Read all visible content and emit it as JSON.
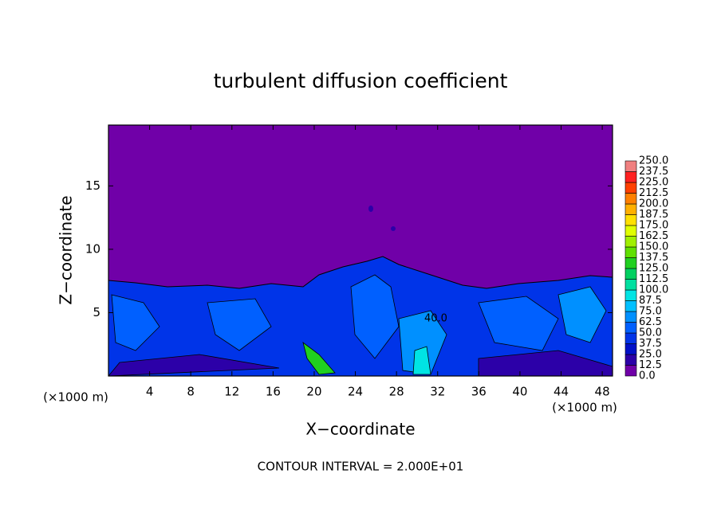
{
  "chart_data": {
    "type": "contour",
    "title": "turbulent diffusion coefficient",
    "xlabel": "X−coordinate",
    "ylabel": "Z−coordinate",
    "xunit_left": "(×1000 m)",
    "xunit_right": "(×1000 m)",
    "footnote": "CONTOUR INTERVAL = 2.000E+01",
    "contour_label": "40.0",
    "xlim": [
      0,
      49
    ],
    "ylim": [
      0,
      19.8
    ],
    "xticks": [
      4,
      8,
      12,
      16,
      20,
      24,
      28,
      32,
      36,
      40,
      44,
      48
    ],
    "yticks": [
      5,
      10,
      15
    ],
    "levels": [
      {
        "value": 0,
        "label": "0.0"
      },
      {
        "value": 12.5,
        "label": "12.5"
      },
      {
        "value": 25,
        "label": "25.0"
      },
      {
        "value": 37.5,
        "label": "37.5"
      },
      {
        "value": 50,
        "label": "50.0"
      },
      {
        "value": 62.5,
        "label": "62.5"
      },
      {
        "value": 75,
        "label": "75.0"
      },
      {
        "value": 87.5,
        "label": "87.5"
      },
      {
        "value": 100,
        "label": "100.0"
      },
      {
        "value": 112.5,
        "label": "112.5"
      },
      {
        "value": 125,
        "label": "125.0"
      },
      {
        "value": 137.5,
        "label": "137.5"
      },
      {
        "value": 150,
        "label": "150.0"
      },
      {
        "value": 162.5,
        "label": "162.5"
      },
      {
        "value": 175,
        "label": "175.0"
      },
      {
        "value": 187.5,
        "label": "187.5"
      },
      {
        "value": 200,
        "label": "200.0"
      },
      {
        "value": 212.5,
        "label": "212.5"
      },
      {
        "value": 225,
        "label": "225.0"
      },
      {
        "value": 237.5,
        "label": "237.5"
      },
      {
        "value": 250,
        "label": "250.0"
      }
    ],
    "colors": [
      "#7000a8",
      "#2c00a8",
      "#0010c8",
      "#0034e8",
      "#0060ff",
      "#0090ff",
      "#00c0ff",
      "#00e4e4",
      "#00e0a0",
      "#00d060",
      "#20d020",
      "#60e000",
      "#a0f000",
      "#e0ff00",
      "#ffe000",
      "#ffb000",
      "#ff8000",
      "#ff4000",
      "#ff2020",
      "#f08080"
    ]
  }
}
